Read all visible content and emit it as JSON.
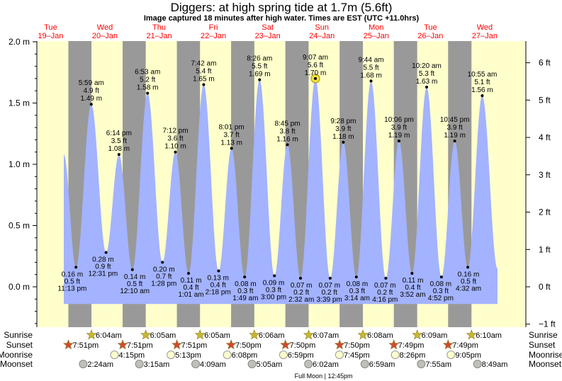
{
  "header": {
    "title": "Diggers: at high  spring tide at 1.7m (5.6ft)",
    "subtitle": "Image captured 18 minutes after high water. Times are EST (UTC +11.0hrs)"
  },
  "colors": {
    "day": "#ffffcc",
    "night": "#999999",
    "water": "#a3b3ff",
    "date_label": "#ff0000",
    "highlight": "#f0e040"
  },
  "chart_data": {
    "type": "area",
    "title": "Diggers: at high  spring tide at 1.7m (5.6ft)",
    "ylabel_left": "m",
    "ylabel_right": "ft",
    "ylim_m": [
      -0.33,
      2.0
    ],
    "left_ticks": [
      {
        "v": 2.0,
        "label": "2.0 m"
      },
      {
        "v": 1.5,
        "label": "1.5 m"
      },
      {
        "v": 1.0,
        "label": "1.0 m"
      },
      {
        "v": 0.5,
        "label": "0.5 m"
      },
      {
        "v": 0.0,
        "label": "0.0 m"
      }
    ],
    "right_ticks": [
      {
        "v": 6,
        "label": "6 ft"
      },
      {
        "v": 5,
        "label": "5 ft"
      },
      {
        "v": 4,
        "label": "4 ft"
      },
      {
        "v": 3,
        "label": "3 ft"
      },
      {
        "v": 2,
        "label": "2 ft"
      },
      {
        "v": 1,
        "label": "1 ft"
      },
      {
        "v": 0,
        "label": "0 ft"
      },
      {
        "v": -1,
        "label": "−1 ft"
      }
    ],
    "days": [
      {
        "day": 19,
        "weekday": "Tue",
        "date": "19–Jan"
      },
      {
        "day": 20,
        "weekday": "Wed",
        "date": "20–Jan"
      },
      {
        "day": 21,
        "weekday": "Thu",
        "date": "21–Jan"
      },
      {
        "day": 22,
        "weekday": "Fri",
        "date": "22–Jan"
      },
      {
        "day": 23,
        "weekday": "Sat",
        "date": "23–Jan"
      },
      {
        "day": 24,
        "weekday": "Sun",
        "date": "24–Jan"
      },
      {
        "day": 25,
        "weekday": "Mon",
        "date": "25–Jan"
      },
      {
        "day": 26,
        "weekday": "Tue",
        "date": "26–Jan"
      },
      {
        "day": 27,
        "weekday": "Wed",
        "date": "27–Jan"
      }
    ],
    "curve_start": {
      "day": 19,
      "time": "5:50 pm",
      "m": 1.08
    },
    "curve_end": {
      "day": 27,
      "time": "5:40 pm",
      "m": 0.15
    },
    "extremes": [
      {
        "type": "low",
        "day": 19,
        "time": "11:13 pm",
        "m": "0.16 m",
        "ft": "0.5 ft",
        "v": 0.16
      },
      {
        "type": "high",
        "day": 20,
        "time": "5:59 am",
        "m": "1.49 m",
        "ft": "4.9 ft",
        "v": 1.49
      },
      {
        "type": "low",
        "day": 20,
        "time": "12:31 pm",
        "m": "0.28 m",
        "ft": "0.9 ft",
        "v": 0.28
      },
      {
        "type": "high",
        "day": 20,
        "time": "6:14 pm",
        "m": "1.08 m",
        "ft": "3.5 ft",
        "v": 1.08
      },
      {
        "type": "low",
        "day": 21,
        "time": "12:10 am",
        "m": "0.14 m",
        "ft": "0.5 ft",
        "v": 0.14
      },
      {
        "type": "high",
        "day": 21,
        "time": "6:53 am",
        "m": "1.58 m",
        "ft": "5.2 ft",
        "v": 1.58
      },
      {
        "type": "low",
        "day": 21,
        "time": "1:28 pm",
        "m": "0.20 m",
        "ft": "0.7 ft",
        "v": 0.2
      },
      {
        "type": "high",
        "day": 21,
        "time": "7:12 pm",
        "m": "1.10 m",
        "ft": "3.6 ft",
        "v": 1.1
      },
      {
        "type": "low",
        "day": 22,
        "time": "1:01 am",
        "m": "0.11 m",
        "ft": "0.4 ft",
        "v": 0.11
      },
      {
        "type": "high",
        "day": 22,
        "time": "7:42 am",
        "m": "1.65 m",
        "ft": "5.4 ft",
        "v": 1.65
      },
      {
        "type": "low",
        "day": 22,
        "time": "2:18 pm",
        "m": "0.13 m",
        "ft": "0.4 ft",
        "v": 0.13
      },
      {
        "type": "high",
        "day": 22,
        "time": "8:01 pm",
        "m": "1.13 m",
        "ft": "3.7 ft",
        "v": 1.13
      },
      {
        "type": "low",
        "day": 23,
        "time": "1:49 am",
        "m": "0.08 m",
        "ft": "0.3 ft",
        "v": 0.08
      },
      {
        "type": "high",
        "day": 23,
        "time": "8:26 am",
        "m": "1.69 m",
        "ft": "5.5 ft",
        "v": 1.69
      },
      {
        "type": "low",
        "day": 23,
        "time": "3:00 pm",
        "m": "0.09 m",
        "ft": "0.3 ft",
        "v": 0.09
      },
      {
        "type": "high",
        "day": 23,
        "time": "8:45 pm",
        "m": "1.16 m",
        "ft": "3.8 ft",
        "v": 1.16
      },
      {
        "type": "low",
        "day": 24,
        "time": "2:32 am",
        "m": "0.07 m",
        "ft": "0.2 ft",
        "v": 0.07
      },
      {
        "type": "high",
        "day": 24,
        "time": "9:07 am",
        "m": "1.70 m",
        "ft": "5.6 ft",
        "v": 1.7,
        "current": true
      },
      {
        "type": "low",
        "day": 24,
        "time": "3:39 pm",
        "m": "0.07 m",
        "ft": "0.2 ft",
        "v": 0.07
      },
      {
        "type": "high",
        "day": 24,
        "time": "9:28 pm",
        "m": "1.18 m",
        "ft": "3.9 ft",
        "v": 1.18
      },
      {
        "type": "low",
        "day": 25,
        "time": "3:14 am",
        "m": "0.08 m",
        "ft": "0.3 ft",
        "v": 0.08
      },
      {
        "type": "high",
        "day": 25,
        "time": "9:44 am",
        "m": "1.68 m",
        "ft": "5.5 ft",
        "v": 1.68
      },
      {
        "type": "low",
        "day": 25,
        "time": "4:16 pm",
        "m": "0.07 m",
        "ft": "0.2 ft",
        "v": 0.07
      },
      {
        "type": "high",
        "day": 25,
        "time": "10:06 pm",
        "m": "1.19 m",
        "ft": "3.9 ft",
        "v": 1.19
      },
      {
        "type": "low",
        "day": 26,
        "time": "3:52 am",
        "m": "0.11 m",
        "ft": "0.4 ft",
        "v": 0.11
      },
      {
        "type": "high",
        "day": 26,
        "time": "10:20 am",
        "m": "1.63 m",
        "ft": "5.3 ft",
        "v": 1.63
      },
      {
        "type": "low",
        "day": 26,
        "time": "4:52 pm",
        "m": "0.08 m",
        "ft": "0.3 ft",
        "v": 0.08
      },
      {
        "type": "high",
        "day": 26,
        "time": "10:45 pm",
        "m": "1.19 m",
        "ft": "3.9 ft",
        "v": 1.19
      },
      {
        "type": "low",
        "day": 27,
        "time": "4:32 am",
        "m": "0.16 m",
        "ft": "0.5 ft",
        "v": 0.16
      },
      {
        "type": "high",
        "day": 27,
        "time": "10:55 am",
        "m": "1.56 m",
        "ft": "5.1 ft",
        "v": 1.56
      }
    ]
  },
  "astro": {
    "labels": {
      "sunrise": "Sunrise",
      "sunset": "Sunset",
      "moonrise": "Moonrise",
      "moonset": "Moonset"
    },
    "sunrise": [
      {
        "day": 20,
        "time": "6:04am"
      },
      {
        "day": 21,
        "time": "6:05am"
      },
      {
        "day": 22,
        "time": "6:05am"
      },
      {
        "day": 23,
        "time": "6:06am"
      },
      {
        "day": 24,
        "time": "6:07am"
      },
      {
        "day": 25,
        "time": "6:08am"
      },
      {
        "day": 26,
        "time": "6:09am"
      },
      {
        "day": 27,
        "time": "6:10am"
      }
    ],
    "sunset": [
      {
        "day": 19,
        "time": "7:51pm"
      },
      {
        "day": 20,
        "time": "7:51pm"
      },
      {
        "day": 21,
        "time": "7:51pm"
      },
      {
        "day": 22,
        "time": "7:50pm"
      },
      {
        "day": 23,
        "time": "7:50pm"
      },
      {
        "day": 24,
        "time": "7:50pm"
      },
      {
        "day": 25,
        "time": "7:49pm"
      },
      {
        "day": 26,
        "time": "7:49pm"
      }
    ],
    "moonrise": [
      {
        "day": 20,
        "time": "4:15pm"
      },
      {
        "day": 21,
        "time": "5:13pm"
      },
      {
        "day": 22,
        "time": "6:08pm"
      },
      {
        "day": 23,
        "time": "6:59pm"
      },
      {
        "day": 24,
        "time": "7:45pm"
      },
      {
        "day": 25,
        "time": "8:26pm"
      },
      {
        "day": 26,
        "time": "9:05pm"
      }
    ],
    "moonset": [
      {
        "day": 20,
        "time": "2:24am"
      },
      {
        "day": 21,
        "time": "3:15am"
      },
      {
        "day": 22,
        "time": "4:09am"
      },
      {
        "day": 23,
        "time": "5:05am"
      },
      {
        "day": 24,
        "time": "6:02am"
      },
      {
        "day": 25,
        "time": "6:59am"
      },
      {
        "day": 26,
        "time": "7:55am"
      },
      {
        "day": 27,
        "time": "8:49am"
      }
    ],
    "moon_phase": {
      "day": 24,
      "time": "12:45pm",
      "label": "Full Moon | 12:45pm"
    }
  }
}
